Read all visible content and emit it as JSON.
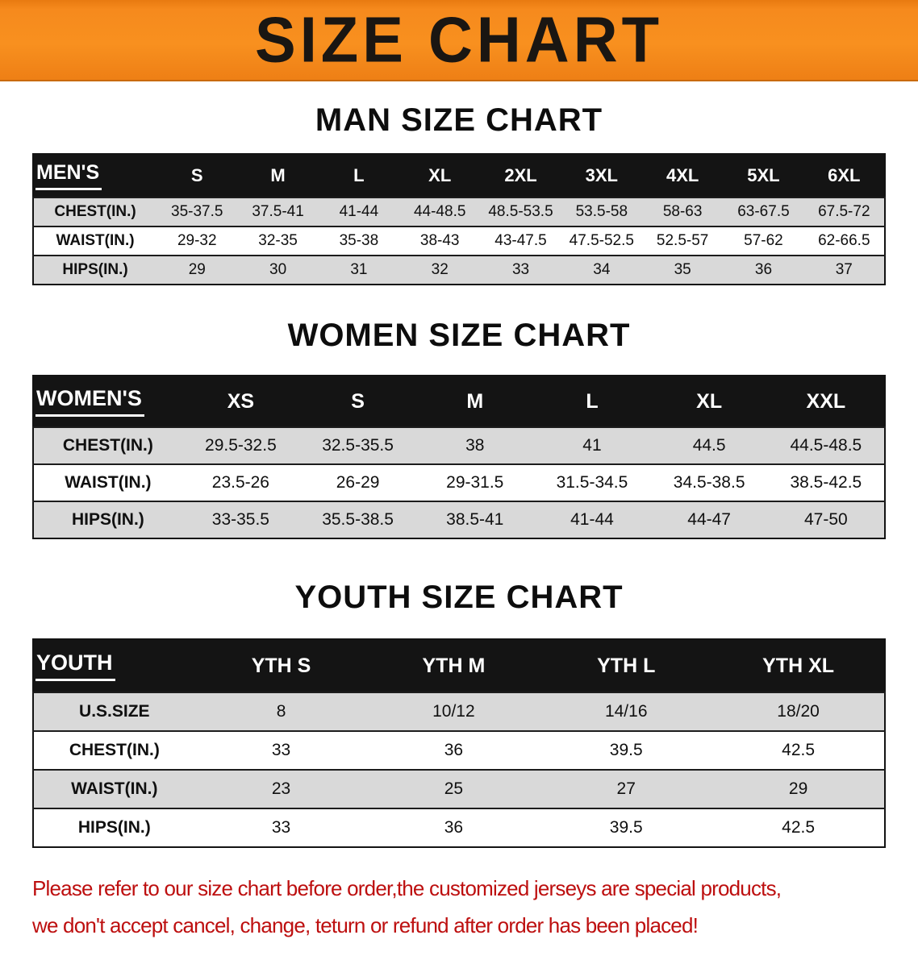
{
  "banner": {
    "title": "SIZE CHART"
  },
  "colors": {
    "banner_bg": "#f68a1d",
    "table_header_bg": "#141414",
    "row_alt_bg": "#d9d9d9",
    "footer_text": "#bd0f0f"
  },
  "sections": [
    {
      "title": "MAN SIZE CHART",
      "table": {
        "header_label": "MEN'S",
        "columns": [
          "S",
          "M",
          "L",
          "XL",
          "2XL",
          "3XL",
          "4XL",
          "5XL",
          "6XL"
        ],
        "rows": [
          {
            "label": "CHEST(IN.)",
            "values": [
              "35-37.5",
              "37.5-41",
              "41-44",
              "44-48.5",
              "48.5-53.5",
              "53.5-58",
              "58-63",
              "63-67.5",
              "67.5-72"
            ]
          },
          {
            "label": "WAIST(IN.)",
            "values": [
              "29-32",
              "32-35",
              "35-38",
              "38-43",
              "43-47.5",
              "47.5-52.5",
              "52.5-57",
              "57-62",
              "62-66.5"
            ]
          },
          {
            "label": "HIPS(IN.)",
            "values": [
              "29",
              "30",
              "31",
              "32",
              "33",
              "34",
              "35",
              "36",
              "37"
            ]
          }
        ]
      }
    },
    {
      "title": "WOMEN SIZE CHART",
      "table": {
        "header_label": "WOMEN'S",
        "columns": [
          "XS",
          "S",
          "M",
          "L",
          "XL",
          "XXL"
        ],
        "rows": [
          {
            "label": "CHEST(IN.)",
            "values": [
              "29.5-32.5",
              "32.5-35.5",
              "38",
              "41",
              "44.5",
              "44.5-48.5"
            ]
          },
          {
            "label": "WAIST(IN.)",
            "values": [
              "23.5-26",
              "26-29",
              "29-31.5",
              "31.5-34.5",
              "34.5-38.5",
              "38.5-42.5"
            ]
          },
          {
            "label": "HIPS(IN.)",
            "values": [
              "33-35.5",
              "35.5-38.5",
              "38.5-41",
              "41-44",
              "44-47",
              "47-50"
            ]
          }
        ]
      }
    },
    {
      "title": "YOUTH SIZE CHART",
      "table": {
        "header_label": "YOUTH",
        "columns": [
          "YTH S",
          "YTH M",
          "YTH L",
          "YTH XL"
        ],
        "rows": [
          {
            "label": "U.S.SIZE",
            "values": [
              "8",
              "10/12",
              "14/16",
              "18/20"
            ]
          },
          {
            "label": "CHEST(IN.)",
            "values": [
              "33",
              "36",
              "39.5",
              "42.5"
            ]
          },
          {
            "label": "WAIST(IN.)",
            "values": [
              "23",
              "25",
              "27",
              "29"
            ]
          },
          {
            "label": "HIPS(IN.)",
            "values": [
              "33",
              "36",
              "39.5",
              "42.5"
            ]
          }
        ]
      }
    }
  ],
  "footer": {
    "line1": "Please refer to our size chart before order,the customized jerseys are special products,",
    "line2": "we don't accept cancel, change, teturn or refund after order has been placed!"
  }
}
